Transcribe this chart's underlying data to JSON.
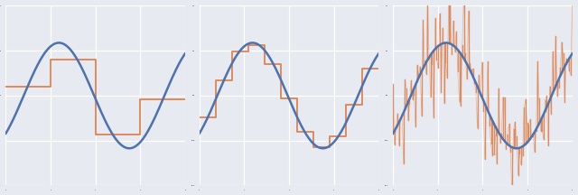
{
  "figsize": [
    6.4,
    2.16
  ],
  "dpi": 100,
  "background_color": "#e8eaf2",
  "blue_color": "#4c72b0",
  "orange_color": "#dd8452",
  "blue_linewidth": 1.8,
  "orange_linewidth": 1.3,
  "n_points": 400,
  "x_min": 0.0,
  "x_max": 8.0,
  "coarse_bins": 4,
  "fine_bins": 11,
  "noise_seed": 7,
  "noise_scale": 0.55,
  "noise_n_points": 120,
  "grid_color": "#ffffff",
  "grid_linewidth": 0.9,
  "subplot_wspace": 0.08,
  "y_min": -1.7,
  "y_max": 1.7
}
